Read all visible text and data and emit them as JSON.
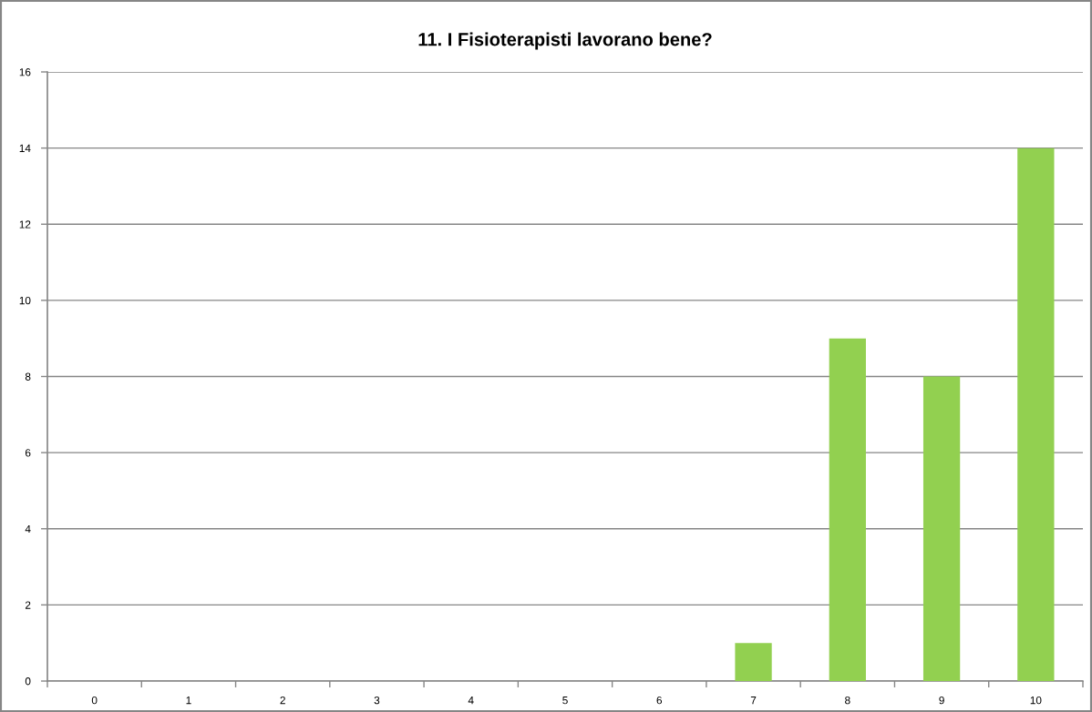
{
  "chart_data": {
    "type": "bar",
    "title": "11. I Fisioterapisti lavorano bene?",
    "categories": [
      "0",
      "1",
      "2",
      "3",
      "4",
      "5",
      "6",
      "7",
      "8",
      "9",
      "10"
    ],
    "values": [
      0,
      0,
      0,
      0,
      0,
      0,
      0,
      1,
      9,
      8,
      14
    ],
    "color": "#92d050",
    "ylim": [
      0,
      16
    ],
    "yticks": [
      0,
      2,
      4,
      6,
      8,
      10,
      12,
      14,
      16
    ],
    "grid": "y",
    "legend": false
  }
}
